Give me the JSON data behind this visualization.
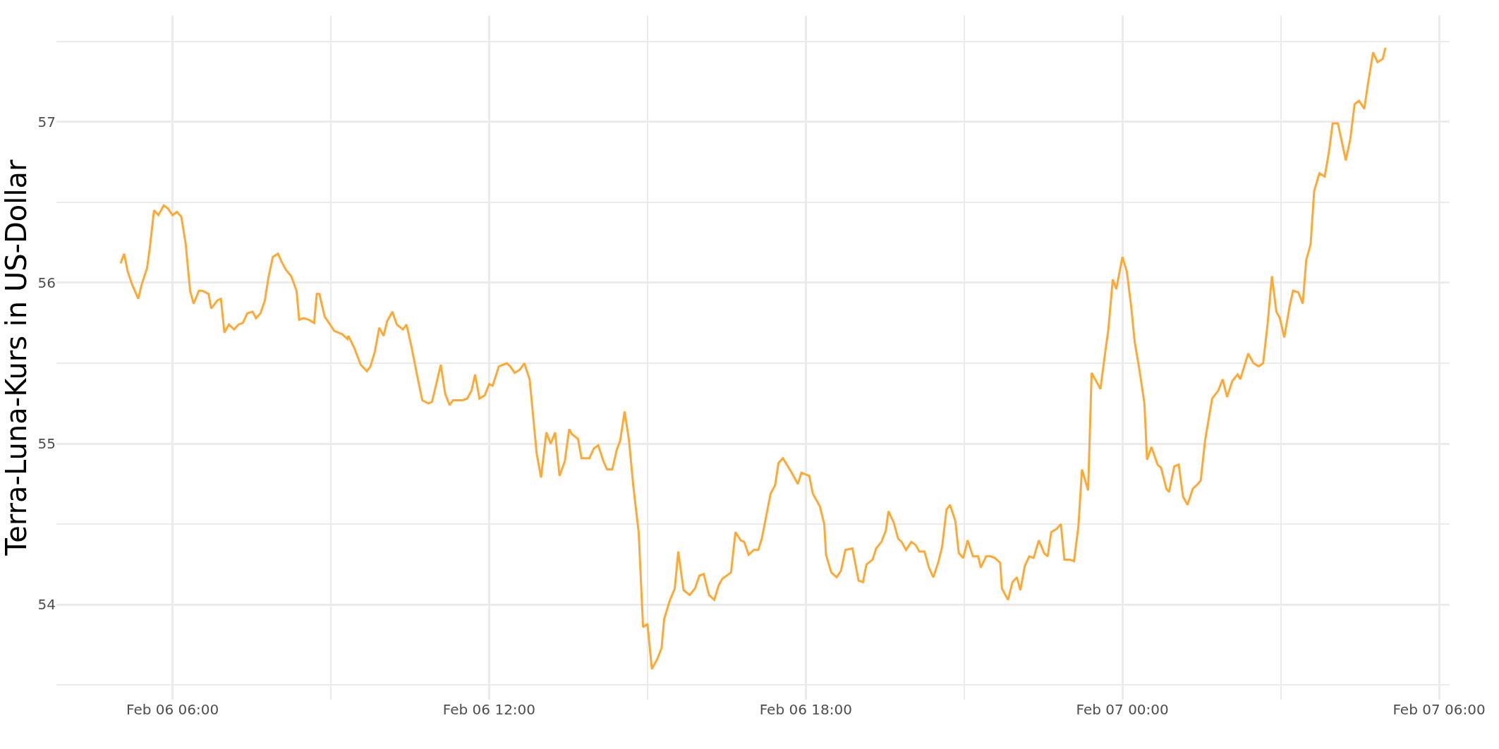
{
  "chart_data": {
    "type": "line",
    "ylabel": "Terra-Luna-Kurs in US-Dollar",
    "xlim": [
      "--02-06T03:48",
      "--02-07T06:12"
    ],
    "ylim": [
      53.41,
      57.66
    ],
    "xticks": [
      {
        "value": "--02-06T06:00",
        "label": "Feb 06 06:00"
      },
      {
        "value": "--02-06T09:00",
        "label": null
      },
      {
        "value": "--02-06T12:00",
        "label": "Feb 06 12:00"
      },
      {
        "value": "--02-06T15:00",
        "label": null
      },
      {
        "value": "--02-06T18:00",
        "label": "Feb 06 18:00"
      },
      {
        "value": "--02-06T21:00",
        "label": null
      },
      {
        "value": "--02-07T00:00",
        "label": "Feb 07 00:00"
      },
      {
        "value": "--02-07T03:00",
        "label": null
      },
      {
        "value": "--02-07T06:00",
        "label": "Feb 07 06:00"
      }
    ],
    "yticks": [
      {
        "value": 53.5,
        "label": null
      },
      54,
      {
        "value": 54.5,
        "label": null
      },
      55,
      {
        "value": 55.5,
        "label": null
      },
      56,
      {
        "value": 56.5,
        "label": null
      },
      57,
      {
        "value": 57.5,
        "label": null
      }
    ],
    "grid": true,
    "line_style": "solid",
    "x": [
      "--02-06T05:01",
      "--02-06T05:05",
      "--02-06T05:09",
      "--02-06T05:14",
      "--02-06T05:21",
      "--02-06T05:25",
      "--02-06T05:31",
      "--02-06T05:34",
      "--02-06T05:39",
      "--02-06T05:44",
      "--02-06T05:50",
      "--02-06T05:55",
      "--02-06T06:00",
      "--02-06T06:05",
      "--02-06T06:10",
      "--02-06T06:15",
      "--02-06T06:20",
      "--02-06T06:24",
      "--02-06T06:30",
      "--02-06T06:34",
      "--02-06T06:41",
      "--02-06T06:44",
      "--02-06T06:51",
      "--02-06T06:55",
      "--02-06T06:59",
      "--02-06T07:04",
      "--02-06T07:10",
      "--02-06T07:15",
      "--02-06T07:20",
      "--02-06T07:25",
      "--02-06T07:31",
      "--02-06T07:35",
      "--02-06T07:40",
      "--02-06T07:45",
      "--02-06T07:49",
      "--02-06T07:54",
      "--02-06T08:00",
      "--02-06T08:04",
      "--02-06T08:09",
      "--02-06T08:15",
      "--02-06T08:21",
      "--02-06T08:24",
      "--02-06T08:29",
      "--02-06T08:35",
      "--02-06T08:41",
      "--02-06T08:44",
      "--02-06T08:47",
      "--02-06T08:53",
      "--02-06T09:04",
      "--02-06T09:13",
      "--02-06T09:19",
      "--02-06T09:20",
      "--02-06T09:27",
      "--02-06T09:34",
      "--02-06T09:41",
      "--02-06T09:45",
      "--02-06T09:50",
      "--02-06T09:55",
      "--02-06T10:00",
      "--02-06T10:04",
      "--02-06T10:10",
      "--02-06T10:15",
      "--02-06T10:22",
      "--02-06T10:26",
      "--02-06T10:31",
      "--02-06T10:39",
      "--02-06T10:44",
      "--02-06T10:51",
      "--02-06T10:55",
      "--02-06T10:59",
      "--02-06T11:05",
      "--02-06T11:10",
      "--02-06T11:15",
      "--02-06T11:19",
      "--02-06T11:30",
      "--02-06T11:35",
      "--02-06T11:40",
      "--02-06T11:44",
      "--02-06T11:49",
      "--02-06T11:55",
      "--02-06T12:00",
      "--02-06T12:04",
      "--02-06T12:11",
      "--02-06T12:20",
      "--02-06T12:24",
      "--02-06T12:29",
      "--02-06T12:35",
      "--02-06T12:40",
      "--02-06T12:46",
      "--02-06T12:49",
      "--02-06T12:54",
      "--02-06T12:59",
      "--02-06T13:05",
      "--02-06T13:10",
      "--02-06T13:15",
      "--02-06T13:20",
      "--02-06T13:26",
      "--02-06T13:31",
      "--02-06T13:34",
      "--02-06T13:41",
      "--02-06T13:45",
      "--02-06T13:54",
      "--02-06T13:59",
      "--02-06T14:04",
      "--02-06T14:10",
      "--02-06T14:14",
      "--02-06T14:20",
      "--02-06T14:25",
      "--02-06T14:29",
      "--02-06T14:34",
      "--02-06T14:39",
      "--02-06T14:44",
      "--02-06T14:50",
      "--02-06T14:55",
      "--02-06T15:00",
      "--02-06T15:05",
      "--02-06T15:11",
      "--02-06T15:16",
      "--02-06T15:19",
      "--02-06T15:25",
      "--02-06T15:31",
      "--02-06T15:35",
      "--02-06T15:41",
      "--02-06T15:48",
      "--02-06T15:54",
      "--02-06T15:59",
      "--02-06T16:04",
      "--02-06T16:10",
      "--02-06T16:16",
      "--02-06T16:21",
      "--02-06T16:25",
      "--02-06T16:35",
      "--02-06T16:40",
      "--02-06T16:46",
      "--02-06T16:50",
      "--02-06T16:55",
      "--02-06T17:01",
      "--02-06T17:06",
      "--02-06T17:10",
      "--02-06T17:15",
      "--02-06T17:20",
      "--02-06T17:25",
      "--02-06T17:29",
      "--02-06T17:34",
      "--02-06T17:44",
      "--02-06T17:51",
      "--02-06T17:55",
      "--02-06T18:04",
      "--02-06T18:08",
      "--02-06T18:16",
      "--02-06T18:21",
      "--02-06T18:23",
      "--02-06T18:29",
      "--02-06T18:35",
      "--02-06T18:40",
      "--02-06T18:45",
      "--02-06T18:53",
      "--02-06T19:00",
      "--02-06T19:05",
      "--02-06T19:09",
      "--02-06T19:16",
      "--02-06T19:20",
      "--02-06T19:26",
      "--02-06T19:31",
      "--02-06T19:34",
      "--02-06T19:40",
      "--02-06T19:45",
      "--02-06T19:49",
      "--02-06T19:54",
      "--02-06T20:00",
      "--02-06T20:05",
      "--02-06T20:09",
      "--02-06T20:15",
      "--02-06T20:20",
      "--02-06T20:25",
      "--02-06T20:31",
      "--02-06T20:35",
      "--02-06T20:40",
      "--02-06T20:44",
      "--02-06T20:50",
      "--02-06T20:54",
      "--02-06T20:59",
      "--02-06T21:04",
      "--02-06T21:10",
      "--02-06T21:16",
      "--02-06T21:19",
      "--02-06T21:25",
      "--02-06T21:30",
      "--02-06T21:35",
      "--02-06T21:41",
      "--02-06T21:43",
      "--02-06T21:50",
      "--02-06T21:55",
      "--02-06T22:00",
      "--02-06T22:04",
      "--02-06T22:09",
      "--02-06T22:14",
      "--02-06T22:19",
      "--02-06T22:25",
      "--02-06T22:31",
      "--02-06T22:35",
      "--02-06T22:39",
      "--02-06T22:45",
      "--02-06T22:50",
      "--02-06T22:54",
      "--02-06T23:00",
      "--02-06T23:05",
      "--02-06T23:10",
      "--02-06T23:14",
      "--02-06T23:21",
      "--02-06T23:25",
      "--02-06T23:31",
      "--02-06T23:35",
      "--02-06T23:40",
      "--02-06T23:44",
      "--02-06T23:49",
      "--02-06T23:53",
      "--02-07T00:00",
      "--02-07T00:05",
      "--02-07T00:10",
      "--02-07T00:14",
      "--02-07T00:19",
      "--02-07T00:25",
      "--02-07T00:28",
      "--02-07T00:33",
      "--02-07T00:40",
      "--02-07T00:44",
      "--02-07T00:50",
      "--02-07T00:53",
      "--02-07T00:59",
      "--02-07T01:04",
      "--02-07T01:09",
      "--02-07T01:14",
      "--02-07T01:20",
      "--02-07T01:24",
      "--02-07T01:29",
      "--02-07T01:34",
      "--02-07T01:42",
      "--02-07T01:49",
      "--02-07T01:54",
      "--02-07T01:59",
      "--02-07T02:05",
      "--02-07T02:11",
      "--02-07T02:14",
      "--02-07T02:23",
      "--02-07T02:29",
      "--02-07T02:35",
      "--02-07T02:40",
      "--02-07T02:45",
      "--02-07T02:50",
      "--02-07T02:55",
      "--02-07T02:59",
      "--02-07T03:04",
      "--02-07T03:10",
      "--02-07T03:14",
      "--02-07T03:20",
      "--02-07T03:25",
      "--02-07T03:29",
      "--02-07T03:34",
      "--02-07T03:38",
      "--02-07T03:44",
      "--02-07T03:50",
      "--02-07T03:55",
      "--02-07T03:59",
      "--02-07T04:05",
      "--02-07T04:14",
      "--02-07T04:19",
      "--02-07T04:24",
      "--02-07T04:29",
      "--02-07T04:35",
      "--02-07T04:39",
      "--02-07T04:45",
      "--02-07T04:50",
      "--02-07T04:56",
      "--02-07T04:59"
    ],
    "series": [
      {
        "color": "#ffa833",
        "values": [
          56.12,
          56.18,
          56.07,
          55.99,
          55.9,
          55.99,
          56.09,
          56.21,
          56.45,
          56.42,
          56.48,
          56.46,
          56.42,
          56.44,
          56.41,
          56.24,
          55.95,
          55.87,
          55.95,
          55.95,
          55.93,
          55.84,
          55.89,
          55.9,
          55.69,
          55.74,
          55.71,
          55.74,
          55.75,
          55.81,
          55.82,
          55.78,
          55.81,
          55.89,
          56.03,
          56.16,
          56.18,
          56.13,
          56.08,
          56.04,
          55.95,
          55.77,
          55.78,
          55.77,
          55.75,
          55.93,
          55.93,
          55.79,
          55.7,
          55.68,
          55.65,
          55.67,
          55.59,
          55.49,
          55.45,
          55.48,
          55.57,
          55.72,
          55.67,
          55.76,
          55.82,
          55.74,
          55.71,
          55.74,
          55.62,
          55.4,
          55.27,
          55.25,
          55.26,
          55.35,
          55.49,
          55.31,
          55.24,
          55.27,
          55.27,
          55.28,
          55.33,
          55.43,
          55.28,
          55.3,
          55.37,
          55.36,
          55.48,
          55.5,
          55.48,
          55.44,
          55.46,
          55.5,
          55.4,
          55.23,
          54.94,
          54.79,
          55.07,
          55.0,
          55.07,
          54.8,
          54.89,
          55.09,
          55.06,
          55.03,
          54.91,
          54.91,
          54.97,
          54.99,
          54.89,
          54.84,
          54.84,
          54.96,
          55.02,
          55.2,
          55.02,
          54.73,
          54.45,
          53.86,
          53.88,
          53.6,
          53.66,
          53.73,
          53.91,
          54.02,
          54.1,
          54.33,
          54.09,
          54.06,
          54.1,
          54.18,
          54.19,
          54.06,
          54.03,
          54.12,
          54.16,
          54.2,
          54.45,
          54.4,
          54.39,
          54.31,
          54.34,
          54.34,
          54.41,
          54.55,
          54.69,
          54.74,
          54.88,
          54.91,
          54.82,
          54.75,
          54.82,
          54.8,
          54.69,
          54.61,
          54.5,
          54.31,
          54.2,
          54.17,
          54.21,
          54.34,
          54.35,
          54.15,
          54.14,
          54.25,
          54.28,
          54.35,
          54.39,
          54.46,
          54.58,
          54.51,
          54.41,
          54.39,
          54.34,
          54.39,
          54.37,
          54.33,
          54.33,
          54.23,
          54.17,
          54.27,
          54.36,
          54.59,
          54.62,
          54.52,
          54.32,
          54.29,
          54.4,
          54.3,
          54.3,
          54.23,
          54.3,
          54.3,
          54.29,
          54.26,
          54.1,
          54.03,
          54.14,
          54.17,
          54.09,
          54.24,
          54.3,
          54.29,
          54.4,
          54.32,
          54.3,
          54.45,
          54.47,
          54.5,
          54.28,
          54.28,
          54.27,
          54.49,
          54.84,
          54.71,
          55.44,
          55.38,
          55.34,
          55.55,
          55.71,
          56.02,
          55.96,
          56.16,
          56.07,
          55.85,
          55.63,
          55.47,
          55.25,
          54.9,
          54.98,
          54.87,
          54.85,
          54.72,
          54.7,
          54.86,
          54.87,
          54.67,
          54.62,
          54.72,
          54.74,
          54.77,
          55.02,
          55.28,
          55.33,
          55.4,
          55.29,
          55.39,
          55.43,
          55.4,
          55.56,
          55.5,
          55.48,
          55.5,
          55.74,
          56.04,
          55.82,
          55.78,
          55.66,
          55.85,
          55.95,
          55.94,
          55.87,
          56.14,
          56.24,
          56.57,
          56.68,
          56.66,
          56.82,
          56.99,
          56.99,
          56.76,
          56.89,
          57.11,
          57.13,
          57.08,
          57.23,
          57.43,
          57.37,
          57.39,
          57.46
        ]
      }
    ]
  }
}
